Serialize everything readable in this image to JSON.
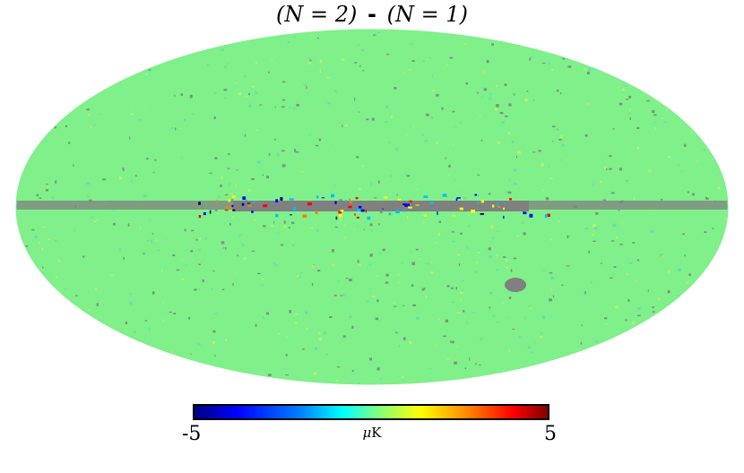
{
  "title": {
    "left": "(N = 2)",
    "sep": "-",
    "right": "(N = 1)"
  },
  "colorbar": {
    "min_label": "-5",
    "max_label": "5",
    "unit_prefix": "μ",
    "unit": "K"
  },
  "colors": {
    "background_field": "#7ff08a",
    "masked": "#808080",
    "low": "#000080",
    "high": "#800000"
  }
}
